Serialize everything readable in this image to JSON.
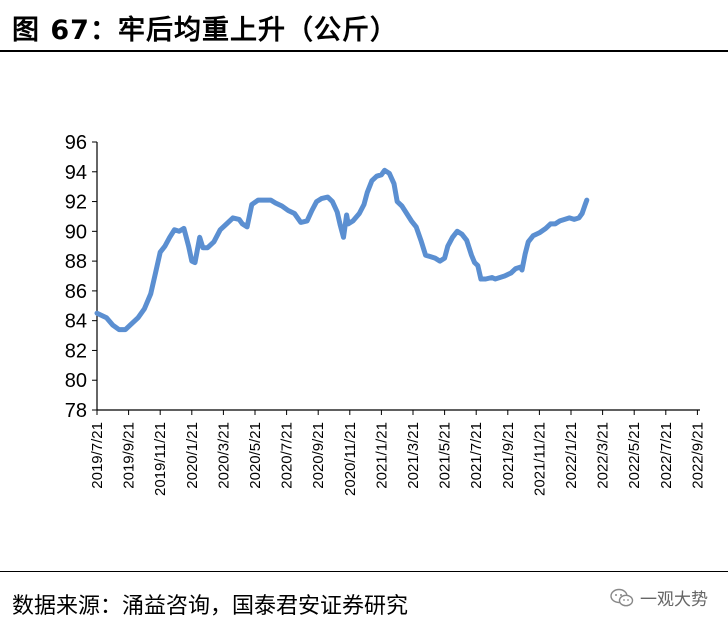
{
  "header": {
    "title": "图 67：牢后均重上升（公斤）"
  },
  "footer": {
    "source": "数据来源：涌益咨询，国泰君安证券研究",
    "watermark": "一观大势",
    "watermark_icon": "wechat-icon"
  },
  "chart_data": {
    "type": "line",
    "title": "",
    "xlabel": "",
    "ylabel": "",
    "ylim": [
      78,
      96
    ],
    "yticks": [
      78,
      80,
      82,
      84,
      86,
      88,
      90,
      92,
      94,
      96
    ],
    "xticks": [
      "2019/7/21",
      "2019/9/21",
      "2019/11/21",
      "2020/1/21",
      "2020/3/21",
      "2020/5/21",
      "2020/7/21",
      "2020/9/21",
      "2020/11/21",
      "2021/1/21",
      "2021/3/21",
      "2021/5/21",
      "2021/7/21",
      "2021/9/21",
      "2021/11/21",
      "2022/1/21",
      "2022/3/21",
      "2022/5/21",
      "2022/7/21",
      "2022/9/21"
    ],
    "grid": false,
    "line_color": "#5b8fd1",
    "series": [
      {
        "values": [
          [
            0.0,
            84.5
          ],
          [
            0.3,
            84.2
          ],
          [
            0.5,
            83.7
          ],
          [
            0.7,
            83.4
          ],
          [
            0.9,
            83.4
          ],
          [
            1.1,
            83.8
          ],
          [
            1.3,
            84.2
          ],
          [
            1.5,
            84.8
          ],
          [
            1.7,
            85.8
          ],
          [
            1.85,
            87.2
          ],
          [
            2.0,
            88.6
          ],
          [
            2.15,
            89.0
          ],
          [
            2.3,
            89.6
          ],
          [
            2.45,
            90.1
          ],
          [
            2.6,
            90.0
          ],
          [
            2.75,
            90.2
          ],
          [
            2.9,
            89.0
          ],
          [
            3.0,
            88.0
          ],
          [
            3.1,
            87.9
          ],
          [
            3.25,
            89.6
          ],
          [
            3.35,
            88.9
          ],
          [
            3.5,
            88.9
          ],
          [
            3.7,
            89.3
          ],
          [
            3.9,
            90.1
          ],
          [
            4.1,
            90.5
          ],
          [
            4.3,
            90.9
          ],
          [
            4.5,
            90.8
          ],
          [
            4.6,
            90.5
          ],
          [
            4.75,
            90.3
          ],
          [
            4.9,
            91.8
          ],
          [
            5.1,
            92.1
          ],
          [
            5.3,
            92.1
          ],
          [
            5.5,
            92.1
          ],
          [
            5.65,
            91.9
          ],
          [
            5.85,
            91.7
          ],
          [
            6.05,
            91.4
          ],
          [
            6.25,
            91.2
          ],
          [
            6.45,
            90.6
          ],
          [
            6.65,
            90.7
          ],
          [
            6.8,
            91.4
          ],
          [
            6.95,
            92.0
          ],
          [
            7.1,
            92.2
          ],
          [
            7.3,
            92.3
          ],
          [
            7.45,
            92.0
          ],
          [
            7.6,
            91.3
          ],
          [
            7.7,
            90.4
          ],
          [
            7.8,
            89.6
          ],
          [
            7.9,
            91.1
          ],
          [
            7.95,
            90.5
          ],
          [
            8.1,
            90.7
          ],
          [
            8.3,
            91.2
          ],
          [
            8.45,
            91.8
          ],
          [
            8.55,
            92.6
          ],
          [
            8.7,
            93.4
          ],
          [
            8.85,
            93.7
          ],
          [
            9.0,
            93.8
          ],
          [
            9.1,
            94.1
          ],
          [
            9.25,
            93.9
          ],
          [
            9.4,
            93.2
          ],
          [
            9.5,
            92.0
          ],
          [
            9.65,
            91.7
          ],
          [
            9.8,
            91.2
          ],
          [
            9.95,
            90.7
          ],
          [
            10.1,
            90.3
          ],
          [
            10.25,
            89.4
          ],
          [
            10.4,
            88.4
          ],
          [
            10.55,
            88.3
          ],
          [
            10.7,
            88.2
          ],
          [
            10.85,
            88.0
          ],
          [
            11.0,
            88.2
          ],
          [
            11.1,
            89.0
          ],
          [
            11.25,
            89.6
          ],
          [
            11.4,
            90.0
          ],
          [
            11.55,
            89.8
          ],
          [
            11.7,
            89.4
          ],
          [
            11.85,
            88.4
          ],
          [
            11.95,
            87.9
          ],
          [
            12.05,
            87.7
          ],
          [
            12.15,
            86.8
          ],
          [
            12.3,
            86.8
          ],
          [
            12.5,
            86.9
          ],
          [
            12.6,
            86.8
          ],
          [
            12.75,
            86.9
          ],
          [
            12.9,
            87.0
          ],
          [
            13.1,
            87.2
          ],
          [
            13.25,
            87.5
          ],
          [
            13.4,
            87.6
          ],
          [
            13.45,
            87.4
          ],
          [
            13.55,
            88.5
          ],
          [
            13.65,
            89.3
          ],
          [
            13.8,
            89.7
          ],
          [
            14.0,
            89.9
          ],
          [
            14.2,
            90.2
          ],
          [
            14.35,
            90.5
          ],
          [
            14.5,
            90.5
          ],
          [
            14.65,
            90.7
          ],
          [
            14.8,
            90.8
          ],
          [
            14.95,
            90.9
          ],
          [
            15.1,
            90.8
          ],
          [
            15.25,
            90.9
          ],
          [
            15.35,
            91.2
          ],
          [
            15.45,
            91.8
          ],
          [
            15.5,
            92.1
          ]
        ]
      }
    ]
  }
}
